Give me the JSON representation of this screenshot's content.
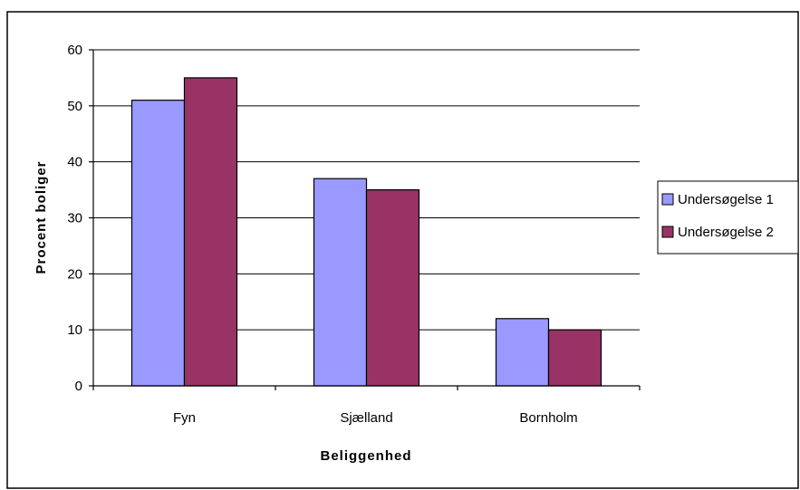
{
  "chart_data": {
    "type": "bar",
    "categories": [
      "Fyn",
      "Sjælland",
      "Bornholm"
    ],
    "series": [
      {
        "name": "Undersøgelse 1",
        "values": [
          51,
          37,
          12
        ],
        "color": "#9999ff"
      },
      {
        "name": "Undersøgelse 2",
        "values": [
          55,
          35,
          10
        ],
        "color": "#993366"
      }
    ],
    "title": "",
    "xlabel": "Beliggenhed",
    "ylabel": "Procent boliger",
    "ylim": [
      0,
      60
    ],
    "yticks": [
      "0",
      "10",
      "20",
      "30",
      "40",
      "50",
      "60"
    ],
    "grid": true,
    "legend": "right"
  }
}
